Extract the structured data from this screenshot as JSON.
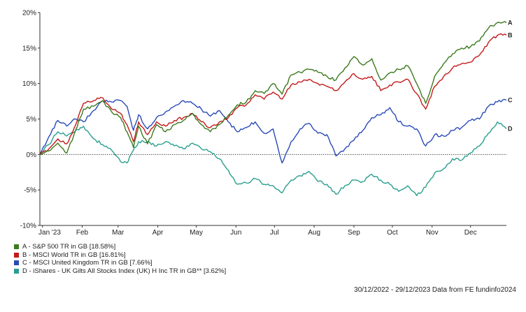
{
  "chart_data": {
    "type": "line",
    "yticks": [
      "20%",
      "15%",
      "10%",
      "5%",
      "0%",
      "-5%",
      "-10%"
    ],
    "ylim": [
      -10,
      20
    ],
    "xticks": [
      "Jan '23",
      "Feb",
      "Mar",
      "Apr",
      "May",
      "Jun",
      "Jul",
      "Aug",
      "Sep",
      "Oct",
      "Nov",
      "Dec"
    ],
    "x_dates": [
      "2023-01-01",
      "2023-02-01",
      "2023-03-01",
      "2023-04-01",
      "2023-05-01",
      "2023-06-01",
      "2023-07-01",
      "2023-08-01",
      "2023-09-01",
      "2023-10-01",
      "2023-11-01",
      "2023-12-01"
    ],
    "grid": false,
    "zero_line": "dotted",
    "legend_position": "bottom-left",
    "series": [
      {
        "key": "A",
        "name": "A - S&P 500 TR in GB [18.58%]",
        "color": "#3c7a1e",
        "points": [
          [
            "2022-12-30",
            0
          ],
          [
            "2023-01-06",
            0.5
          ],
          [
            "2023-01-13",
            1.6
          ],
          [
            "2023-01-20",
            0.2
          ],
          [
            "2023-01-27",
            3.5
          ],
          [
            "2023-02-02",
            6.4
          ],
          [
            "2023-02-10",
            6.8
          ],
          [
            "2023-02-17",
            7.6
          ],
          [
            "2023-02-24",
            6.0
          ],
          [
            "2023-03-03",
            5.2
          ],
          [
            "2023-03-08",
            3.2
          ],
          [
            "2023-03-13",
            1.0
          ],
          [
            "2023-03-17",
            4.0
          ],
          [
            "2023-03-24",
            1.5
          ],
          [
            "2023-03-31",
            4.2
          ],
          [
            "2023-04-07",
            3.2
          ],
          [
            "2023-04-14",
            4.2
          ],
          [
            "2023-04-21",
            4.8
          ],
          [
            "2023-04-28",
            5.8
          ],
          [
            "2023-05-05",
            4.2
          ],
          [
            "2023-05-12",
            3.2
          ],
          [
            "2023-05-19",
            4.2
          ],
          [
            "2023-05-26",
            5.5
          ],
          [
            "2023-06-02",
            7.0
          ],
          [
            "2023-06-09",
            7.4
          ],
          [
            "2023-06-16",
            9.0
          ],
          [
            "2023-06-23",
            8.6
          ],
          [
            "2023-06-30",
            10.0
          ],
          [
            "2023-07-07",
            8.5
          ],
          [
            "2023-07-14",
            11.2
          ],
          [
            "2023-07-21",
            11.6
          ],
          [
            "2023-07-28",
            12.0
          ],
          [
            "2023-08-04",
            11.6
          ],
          [
            "2023-08-11",
            11.0
          ],
          [
            "2023-08-18",
            10.5
          ],
          [
            "2023-08-25",
            12.2
          ],
          [
            "2023-09-01",
            13.8
          ],
          [
            "2023-09-08",
            12.6
          ],
          [
            "2023-09-15",
            13.5
          ],
          [
            "2023-09-22",
            10.5
          ],
          [
            "2023-09-29",
            11.5
          ],
          [
            "2023-10-06",
            12.0
          ],
          [
            "2023-10-13",
            12.5
          ],
          [
            "2023-10-20",
            10.0
          ],
          [
            "2023-10-27",
            7.2
          ],
          [
            "2023-11-03",
            11.0
          ],
          [
            "2023-11-10",
            12.8
          ],
          [
            "2023-11-17",
            14.2
          ],
          [
            "2023-11-24",
            15.0
          ],
          [
            "2023-12-01",
            15.2
          ],
          [
            "2023-12-08",
            16.0
          ],
          [
            "2023-12-15",
            17.8
          ],
          [
            "2023-12-22",
            18.6
          ],
          [
            "2023-12-29",
            18.58
          ]
        ]
      },
      {
        "key": "B",
        "name": "B - MSCI World TR in GB [16.81%]",
        "color": "#c41a1a",
        "points": [
          [
            "2022-12-30",
            0
          ],
          [
            "2023-01-06",
            0.8
          ],
          [
            "2023-01-13",
            2.2
          ],
          [
            "2023-01-20",
            1.5
          ],
          [
            "2023-01-27",
            4.2
          ],
          [
            "2023-02-02",
            7.2
          ],
          [
            "2023-02-10",
            7.6
          ],
          [
            "2023-02-17",
            8.0
          ],
          [
            "2023-02-24",
            6.4
          ],
          [
            "2023-03-03",
            5.8
          ],
          [
            "2023-03-08",
            4.2
          ],
          [
            "2023-03-13",
            1.8
          ],
          [
            "2023-03-17",
            4.6
          ],
          [
            "2023-03-24",
            2.8
          ],
          [
            "2023-03-31",
            4.6
          ],
          [
            "2023-04-07",
            4.0
          ],
          [
            "2023-04-14",
            4.8
          ],
          [
            "2023-04-21",
            5.2
          ],
          [
            "2023-04-28",
            5.8
          ],
          [
            "2023-05-05",
            4.6
          ],
          [
            "2023-05-12",
            3.8
          ],
          [
            "2023-05-19",
            4.6
          ],
          [
            "2023-05-26",
            5.2
          ],
          [
            "2023-06-02",
            6.6
          ],
          [
            "2023-06-09",
            7.0
          ],
          [
            "2023-06-16",
            8.4
          ],
          [
            "2023-06-23",
            7.8
          ],
          [
            "2023-06-30",
            8.8
          ],
          [
            "2023-07-07",
            7.8
          ],
          [
            "2023-07-14",
            9.8
          ],
          [
            "2023-07-21",
            10.2
          ],
          [
            "2023-07-28",
            10.6
          ],
          [
            "2023-08-04",
            10.0
          ],
          [
            "2023-08-11",
            9.6
          ],
          [
            "2023-08-18",
            9.0
          ],
          [
            "2023-08-25",
            10.2
          ],
          [
            "2023-09-01",
            11.4
          ],
          [
            "2023-09-08",
            10.6
          ],
          [
            "2023-09-15",
            11.0
          ],
          [
            "2023-09-22",
            9.0
          ],
          [
            "2023-09-29",
            9.8
          ],
          [
            "2023-10-06",
            10.2
          ],
          [
            "2023-10-13",
            10.6
          ],
          [
            "2023-10-20",
            8.6
          ],
          [
            "2023-10-27",
            6.4
          ],
          [
            "2023-11-03",
            9.6
          ],
          [
            "2023-11-10",
            11.0
          ],
          [
            "2023-11-17",
            12.2
          ],
          [
            "2023-11-24",
            12.8
          ],
          [
            "2023-12-01",
            13.0
          ],
          [
            "2023-12-08",
            14.0
          ],
          [
            "2023-12-15",
            15.8
          ],
          [
            "2023-12-22",
            16.8
          ],
          [
            "2023-12-29",
            16.81
          ]
        ]
      },
      {
        "key": "C",
        "name": "C - MSCI United Kingdom TR in GB [7.66%]",
        "color": "#2a4ab8",
        "points": [
          [
            "2022-12-30",
            0
          ],
          [
            "2023-01-06",
            2.5
          ],
          [
            "2023-01-13",
            4.8
          ],
          [
            "2023-01-20",
            4.0
          ],
          [
            "2023-01-27",
            5.0
          ],
          [
            "2023-02-02",
            4.6
          ],
          [
            "2023-02-10",
            6.2
          ],
          [
            "2023-02-17",
            7.6
          ],
          [
            "2023-02-24",
            7.4
          ],
          [
            "2023-03-03",
            7.6
          ],
          [
            "2023-03-08",
            6.8
          ],
          [
            "2023-03-13",
            3.4
          ],
          [
            "2023-03-17",
            5.6
          ],
          [
            "2023-03-24",
            3.6
          ],
          [
            "2023-03-31",
            5.2
          ],
          [
            "2023-04-07",
            6.0
          ],
          [
            "2023-04-14",
            6.8
          ],
          [
            "2023-04-21",
            7.6
          ],
          [
            "2023-04-28",
            7.2
          ],
          [
            "2023-05-05",
            6.4
          ],
          [
            "2023-05-12",
            5.4
          ],
          [
            "2023-05-19",
            6.2
          ],
          [
            "2023-05-26",
            4.6
          ],
          [
            "2023-06-02",
            3.2
          ],
          [
            "2023-06-09",
            3.8
          ],
          [
            "2023-06-16",
            4.6
          ],
          [
            "2023-06-23",
            3.0
          ],
          [
            "2023-06-30",
            3.6
          ],
          [
            "2023-07-07",
            -1.2
          ],
          [
            "2023-07-14",
            1.8
          ],
          [
            "2023-07-21",
            3.6
          ],
          [
            "2023-07-28",
            4.4
          ],
          [
            "2023-08-04",
            3.0
          ],
          [
            "2023-08-11",
            2.8
          ],
          [
            "2023-08-18",
            -0.2
          ],
          [
            "2023-08-25",
            0.8
          ],
          [
            "2023-09-01",
            2.0
          ],
          [
            "2023-09-08",
            3.4
          ],
          [
            "2023-09-15",
            5.2
          ],
          [
            "2023-09-22",
            5.6
          ],
          [
            "2023-09-29",
            6.6
          ],
          [
            "2023-10-06",
            4.6
          ],
          [
            "2023-10-13",
            4.0
          ],
          [
            "2023-10-20",
            3.6
          ],
          [
            "2023-10-27",
            1.2
          ],
          [
            "2023-11-03",
            2.8
          ],
          [
            "2023-11-10",
            2.6
          ],
          [
            "2023-11-17",
            3.4
          ],
          [
            "2023-11-24",
            3.8
          ],
          [
            "2023-12-01",
            4.8
          ],
          [
            "2023-12-08",
            5.0
          ],
          [
            "2023-12-15",
            6.8
          ],
          [
            "2023-12-22",
            7.4
          ],
          [
            "2023-12-29",
            7.66
          ]
        ]
      },
      {
        "key": "D",
        "name": "D - iShares - UK Gilts All Stocks Index (UK) H Inc TR in GB** [3.62%]",
        "color": "#2a9e8e",
        "points": [
          [
            "2022-12-30",
            0
          ],
          [
            "2023-01-06",
            1.4
          ],
          [
            "2023-01-13",
            3.2
          ],
          [
            "2023-01-20",
            2.6
          ],
          [
            "2023-01-27",
            3.4
          ],
          [
            "2023-02-02",
            4.0
          ],
          [
            "2023-02-10",
            2.2
          ],
          [
            "2023-02-17",
            1.4
          ],
          [
            "2023-02-24",
            0.6
          ],
          [
            "2023-03-03",
            -1.0
          ],
          [
            "2023-03-08",
            -1.2
          ],
          [
            "2023-03-13",
            0.6
          ],
          [
            "2023-03-17",
            1.8
          ],
          [
            "2023-03-24",
            1.8
          ],
          [
            "2023-03-31",
            1.2
          ],
          [
            "2023-04-07",
            1.8
          ],
          [
            "2023-04-14",
            1.2
          ],
          [
            "2023-04-21",
            0.8
          ],
          [
            "2023-04-28",
            1.6
          ],
          [
            "2023-05-05",
            0.8
          ],
          [
            "2023-05-12",
            0.4
          ],
          [
            "2023-05-19",
            -0.6
          ],
          [
            "2023-05-26",
            -2.2
          ],
          [
            "2023-06-02",
            -4.2
          ],
          [
            "2023-06-09",
            -4.0
          ],
          [
            "2023-06-16",
            -3.4
          ],
          [
            "2023-06-23",
            -4.2
          ],
          [
            "2023-06-30",
            -4.4
          ],
          [
            "2023-07-07",
            -5.4
          ],
          [
            "2023-07-14",
            -3.6
          ],
          [
            "2023-07-21",
            -3.0
          ],
          [
            "2023-07-28",
            -2.4
          ],
          [
            "2023-08-04",
            -3.8
          ],
          [
            "2023-08-11",
            -4.2
          ],
          [
            "2023-08-18",
            -5.6
          ],
          [
            "2023-08-25",
            -4.4
          ],
          [
            "2023-09-01",
            -3.6
          ],
          [
            "2023-09-08",
            -3.8
          ],
          [
            "2023-09-15",
            -2.8
          ],
          [
            "2023-09-22",
            -3.6
          ],
          [
            "2023-09-29",
            -4.2
          ],
          [
            "2023-10-06",
            -5.2
          ],
          [
            "2023-10-13",
            -4.4
          ],
          [
            "2023-10-20",
            -5.8
          ],
          [
            "2023-10-27",
            -4.6
          ],
          [
            "2023-11-03",
            -2.6
          ],
          [
            "2023-11-10",
            -2.0
          ],
          [
            "2023-11-17",
            -0.6
          ],
          [
            "2023-11-24",
            -0.8
          ],
          [
            "2023-12-01",
            0.2
          ],
          [
            "2023-12-08",
            1.2
          ],
          [
            "2023-12-15",
            3.0
          ],
          [
            "2023-12-22",
            4.6
          ],
          [
            "2023-12-29",
            3.62
          ]
        ]
      }
    ]
  },
  "footer": {
    "date_range": "30/12/2022 - 29/12/2023",
    "source": "Data from FE fundinfo2024"
  }
}
